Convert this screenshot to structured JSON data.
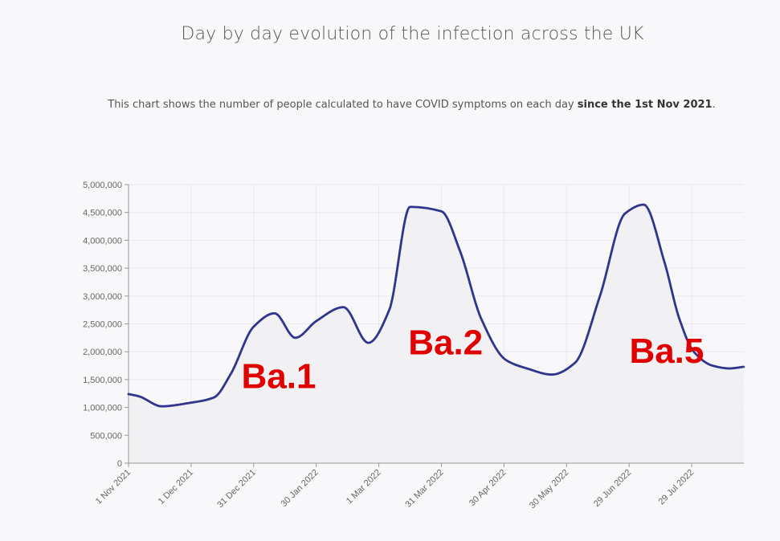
{
  "header": {
    "title": "Day by day evolution of the infection across the UK",
    "subtitle_prefix": "This chart shows the number of people calculated to have COVID symptoms on each day ",
    "subtitle_bold": "since the 1st Nov 2021",
    "subtitle_suffix": "."
  },
  "chart_data": {
    "type": "area",
    "title": "Day by day evolution of the infection across the UK",
    "xlabel": "",
    "ylabel": "",
    "ylim": [
      0,
      5000000
    ],
    "yticks": [
      0,
      500000,
      1000000,
      1500000,
      2000000,
      2500000,
      3000000,
      3500000,
      4000000,
      4500000,
      5000000
    ],
    "ytick_labels": [
      "0",
      "500,000",
      "1,000,000",
      "1,500,000",
      "2,000,000",
      "2,500,000",
      "3,000,000",
      "3,500,000",
      "4,000,000",
      "4,500,000",
      "5,000,000"
    ],
    "xlim": [
      "2021-11-01",
      "2022-08-23"
    ],
    "xticks": [
      "2021-11-01",
      "2021-12-01",
      "2021-12-31",
      "2022-01-30",
      "2022-03-01",
      "2022-03-31",
      "2022-04-30",
      "2022-05-30",
      "2022-06-29",
      "2022-07-29"
    ],
    "xtick_labels": [
      "1 Nov 2021",
      "1 Dec 2021",
      "31 Dec 2021",
      "30 Jan 2022",
      "1 Mar 2022",
      "31 Mar 2022",
      "30 Apr 2022",
      "30 May 2022",
      "29 Jun 2022",
      "29 Jul 2022"
    ],
    "grid": true,
    "series": [
      {
        "color": "#3a3f9c",
        "x": [
          "2021-11-01",
          "2021-11-06",
          "2021-11-17",
          "2021-11-30",
          "2021-12-12",
          "2021-12-20",
          "2021-12-31",
          "2022-01-10",
          "2022-01-20",
          "2022-01-30",
          "2022-02-12",
          "2022-02-24",
          "2022-03-06",
          "2022-03-16",
          "2022-03-31",
          "2022-04-09",
          "2022-04-19",
          "2022-05-01",
          "2022-05-11",
          "2022-05-23",
          "2022-06-03",
          "2022-06-15",
          "2022-06-27",
          "2022-07-06",
          "2022-07-16",
          "2022-07-23",
          "2022-07-30",
          "2022-08-08",
          "2022-08-16",
          "2022-08-23"
        ],
        "values": [
          1240000,
          1200000,
          1020000,
          1080000,
          1180000,
          1600000,
          2450000,
          2690000,
          2250000,
          2550000,
          2800000,
          2160000,
          2750000,
          4600000,
          4520000,
          3800000,
          2600000,
          1850000,
          1700000,
          1590000,
          1800000,
          3000000,
          4480000,
          4640000,
          3600000,
          2600000,
          2000000,
          1750000,
          1700000,
          1730000
        ]
      }
    ],
    "annotations": [
      {
        "text": "Ba.1",
        "x": "2022-01-12",
        "y": 1350000
      },
      {
        "text": "Ba.2",
        "x": "2022-04-02",
        "y": 1950000
      },
      {
        "text": "Ba.5",
        "x": "2022-07-17",
        "y": 1800000
      }
    ],
    "colors": {
      "line": "#3a3f9c",
      "annotation": "#e00000",
      "fill": "#efeff3"
    }
  }
}
